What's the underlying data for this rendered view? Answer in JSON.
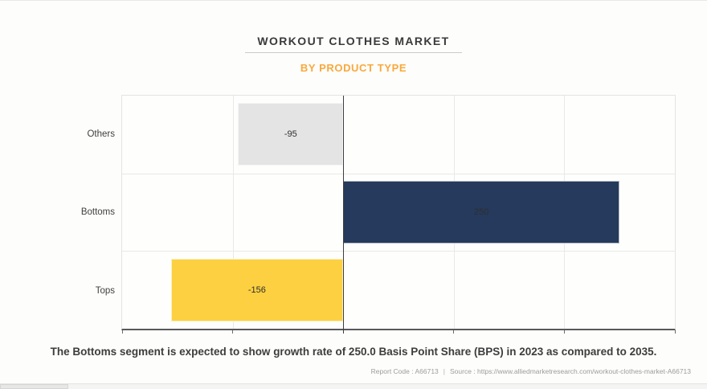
{
  "header": {
    "title": "WORKOUT CLOTHES MARKET",
    "subtitle": "BY PRODUCT TYPE"
  },
  "chart_data": {
    "type": "bar",
    "orientation": "horizontal",
    "title": "WORKOUT CLOTHES MARKET",
    "subtitle": "BY PRODUCT TYPE",
    "categories": [
      "Others",
      "Bottoms",
      "Tops"
    ],
    "values": [
      -95,
      250,
      -156
    ],
    "value_labels": [
      "-95",
      "250",
      "-156"
    ],
    "bar_colors": [
      "#e4e4e4",
      "#253a5c",
      "#fcd040"
    ],
    "xlim": [
      -200,
      300
    ],
    "gridline_step": 100,
    "grid": true,
    "legend": "none",
    "xlabel": "",
    "ylabel": "",
    "tick_labels_shown": false,
    "unit": "Basis Point Share (BPS)"
  },
  "annotation": {
    "text": "The Bottoms segment is expected to show growth rate of 250.0 Basis Point Share (BPS) in 2023 as compared to 2035."
  },
  "footer": {
    "report_code_label": "Report Code : A66713",
    "separator": "|",
    "source_label": "Source : https://www.alliedmarketresearch.com/workout-clothes-market-A66713"
  },
  "colors": {
    "accent_orange": "#f9a93c",
    "navy": "#253a5c",
    "yellow": "#fcd040",
    "gray_bar": "#e4e4e4",
    "title_text": "#3a3a3a",
    "muted_text": "#9c9c9c",
    "zero_line": "#3e3e40",
    "gridline": "#e9e9e7",
    "background": "#fdfdfb"
  }
}
